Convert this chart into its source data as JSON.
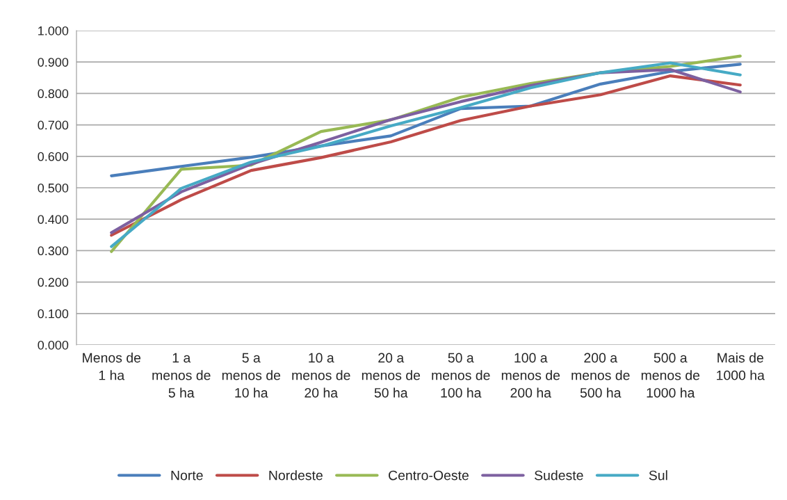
{
  "chart_data": {
    "type": "line",
    "categories": [
      "Menos de 1 ha",
      "1 a menos de 5 ha",
      "5 a menos de 10 ha",
      "10 a menos de 20 ha",
      "20 a menos de 50 ha",
      "50 a menos de 100 ha",
      "100 a menos de 200 ha",
      "200 a menos de 500 ha",
      "500 a menos de 1000 ha",
      "Mais de 1000 ha"
    ],
    "series": [
      {
        "name": "Norte",
        "color": "#4a7ebb",
        "values": [
          0.538,
          0.568,
          0.597,
          0.633,
          0.665,
          0.752,
          0.76,
          0.83,
          0.87,
          0.893
        ]
      },
      {
        "name": "Nordeste",
        "color": "#be4b48",
        "values": [
          0.349,
          0.462,
          0.555,
          0.596,
          0.646,
          0.714,
          0.76,
          0.796,
          0.856,
          0.827
        ]
      },
      {
        "name": "Centro-Oeste",
        "color": "#98b954",
        "values": [
          0.297,
          0.559,
          0.572,
          0.679,
          0.716,
          0.788,
          0.832,
          0.866,
          0.886,
          0.919
        ]
      },
      {
        "name": "Sudeste",
        "color": "#7d60a0",
        "values": [
          0.357,
          0.487,
          0.575,
          0.645,
          0.717,
          0.774,
          0.825,
          0.866,
          0.876,
          0.805
        ]
      },
      {
        "name": "Sul",
        "color": "#46aac5",
        "values": [
          0.313,
          0.498,
          0.582,
          0.632,
          0.697,
          0.755,
          0.818,
          0.866,
          0.897,
          0.859
        ]
      }
    ],
    "ylim": [
      0,
      1
    ],
    "yticks": [
      {
        "value": 0,
        "label": "0.000"
      },
      {
        "value": 0.1,
        "label": "0.100"
      },
      {
        "value": 0.2,
        "label": "0.200"
      },
      {
        "value": 0.3,
        "label": "0.300"
      },
      {
        "value": 0.4,
        "label": "0.400"
      },
      {
        "value": 0.5,
        "label": "0.500"
      },
      {
        "value": 0.6,
        "label": "0.600"
      },
      {
        "value": 0.7,
        "label": "0.700"
      },
      {
        "value": 0.8,
        "label": "0.800"
      },
      {
        "value": 0.9,
        "label": "0.900"
      },
      {
        "value": 1,
        "label": "1.000"
      }
    ],
    "grid": "y",
    "legend": "bottom",
    "marker": "none",
    "line_style": "solid"
  }
}
